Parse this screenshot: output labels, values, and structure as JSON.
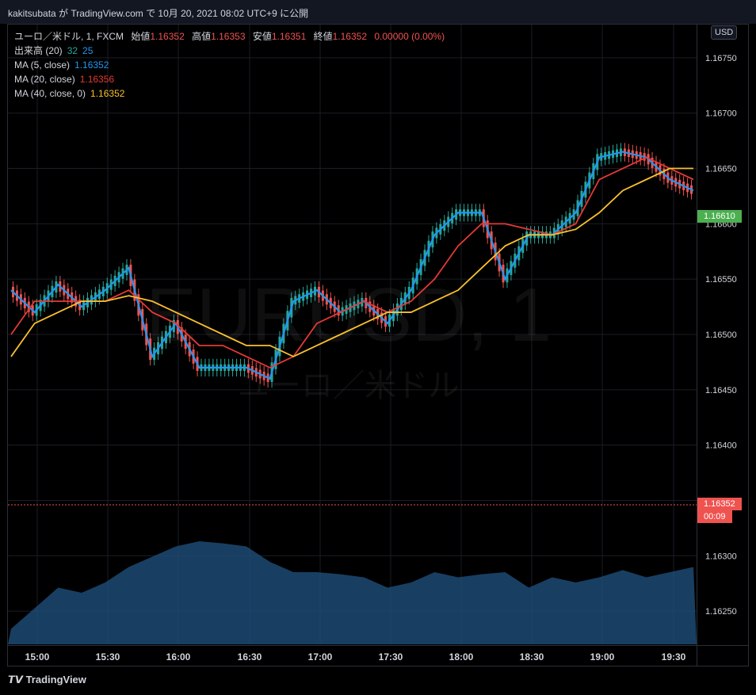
{
  "header": {
    "published_by": "kakitsubata が TradingView.com で 10月 20, 2021 08:02 UTC+9 に公開"
  },
  "legend": {
    "symbol": "ユーロ／米ドル, 1, FXCM",
    "open_label": "始値",
    "open": "1.16352",
    "high_label": "高値",
    "high": "1.16353",
    "low_label": "安値",
    "low": "1.16351",
    "close_label": "終値",
    "close": "1.16352",
    "change": "0.00000 (0.00%)",
    "volume_label": "出来高 (20)",
    "volume_val1": "32",
    "volume_val2": "25",
    "ma5_label": "MA (5, close)",
    "ma5_val": "1.16352",
    "ma20_label": "MA (20, close)",
    "ma20_val": "1.16356",
    "ma40_label": "MA (40, close, 0)",
    "ma40_val": "1.16352"
  },
  "currency_button": "USD",
  "watermark": {
    "symbol": "EURUSD, 1",
    "name": "ユーロ／米ドル"
  },
  "price_badges": {
    "last": "1.16610",
    "current": "1.16352",
    "countdown": "00:09"
  },
  "footer": {
    "brand": "TradingView"
  },
  "colors": {
    "up": "#26a69a",
    "down": "#ef5350",
    "ma5": "#2196f3",
    "ma20": "#e53935",
    "ma40": "#fbc02d",
    "volume": "#1e4f7a"
  },
  "chart_data": {
    "type": "line",
    "title": "",
    "xlabel": "",
    "ylabel": "",
    "x_ticks": [
      "15:00",
      "15:30",
      "16:00",
      "16:30",
      "17:00",
      "17:30",
      "18:00",
      "18:30",
      "19:00",
      "19:30"
    ],
    "y_ticks": [
      "1.16750",
      "1.16700",
      "1.16650",
      "1.16600",
      "1.16550",
      "1.16500",
      "1.16450",
      "1.16400",
      "1.16350",
      "1.16300",
      "1.16250"
    ],
    "ylim": [
      1.1622,
      1.1678
    ],
    "grid": true,
    "x": [
      "14:50",
      "15:00",
      "15:10",
      "15:20",
      "15:30",
      "15:40",
      "15:50",
      "16:00",
      "16:10",
      "16:20",
      "16:30",
      "16:40",
      "16:50",
      "17:00",
      "17:10",
      "17:20",
      "17:30",
      "17:40",
      "17:50",
      "18:00",
      "18:10",
      "18:20",
      "18:30",
      "18:40",
      "18:50",
      "19:00",
      "19:10",
      "19:20",
      "19:30",
      "19:40"
    ],
    "series": [
      {
        "name": "MA (5, close)",
        "values": [
          1.1654,
          1.1652,
          1.16545,
          1.16525,
          1.1654,
          1.1656,
          1.1648,
          1.1651,
          1.1647,
          1.1647,
          1.1647,
          1.1646,
          1.1653,
          1.1654,
          1.1652,
          1.1653,
          1.1651,
          1.1654,
          1.1659,
          1.1661,
          1.1661,
          1.1655,
          1.1659,
          1.1659,
          1.1661,
          1.1666,
          1.16665,
          1.1666,
          1.1664,
          1.1663
        ]
      },
      {
        "name": "MA (20, close)",
        "values": [
          1.165,
          1.1653,
          1.1653,
          1.1653,
          1.1653,
          1.1654,
          1.1652,
          1.1651,
          1.1649,
          1.1649,
          1.1648,
          1.1647,
          1.1648,
          1.1651,
          1.1652,
          1.1653,
          1.1652,
          1.1653,
          1.1655,
          1.1658,
          1.166,
          1.166,
          1.16595,
          1.1659,
          1.166,
          1.1664,
          1.1665,
          1.1666,
          1.1665,
          1.1664
        ]
      },
      {
        "name": "MA (40, close, 0)",
        "values": [
          1.1648,
          1.1651,
          1.1652,
          1.1653,
          1.1653,
          1.16535,
          1.1653,
          1.1652,
          1.1651,
          1.165,
          1.1649,
          1.1649,
          1.1648,
          1.1649,
          1.165,
          1.1651,
          1.1652,
          1.1652,
          1.1653,
          1.1654,
          1.1656,
          1.1658,
          1.1659,
          1.1659,
          1.16595,
          1.1661,
          1.1663,
          1.1664,
          1.1665,
          1.1665
        ]
      }
    ],
    "volume_area": {
      "values": [
        0.15,
        0.35,
        0.55,
        0.5,
        0.6,
        0.75,
        0.85,
        0.95,
        1.0,
        0.98,
        0.95,
        0.8,
        0.7,
        0.7,
        0.68,
        0.65,
        0.55,
        0.6,
        0.7,
        0.65,
        0.68,
        0.7,
        0.55,
        0.65,
        0.6,
        0.65,
        0.72,
        0.65,
        0.7,
        0.75
      ]
    },
    "current_price": 1.16352
  }
}
